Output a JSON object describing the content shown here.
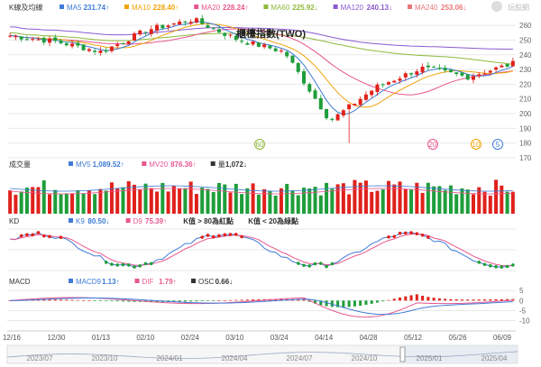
{
  "watermark": "玩股網",
  "colors": {
    "up": "#e0211b",
    "down": "#1e9e3a",
    "ma5": "#3e7bd6",
    "ma10": "#f0a30a",
    "ma20": "#e8568f",
    "ma60": "#8fb83a",
    "ma120": "#8a5ad0",
    "ma240": "#e87878",
    "k": "#3e7bd6",
    "d": "#e8568f",
    "grid": "#e9e9e9"
  },
  "price_panel": {
    "label": "K線及均線",
    "title": "櫃檯指數(TWO)",
    "legend": [
      {
        "name": "MA5",
        "value": "231.74↑",
        "color": "#3e7bd6"
      },
      {
        "name": "MA10",
        "value": "228.40↑",
        "color": "#f0a30a"
      },
      {
        "name": "MA20",
        "value": "228.24↑",
        "color": "#e8568f"
      },
      {
        "name": "MA60",
        "value": "225.92↓",
        "color": "#8fb83a"
      },
      {
        "name": "MA120",
        "value": "240.13↓",
        "color": "#8a5ad0"
      },
      {
        "name": "MA240",
        "value": "253.06↓",
        "color": "#e87878"
      }
    ],
    "y_ticks": [
      "260",
      "250",
      "240",
      "230",
      "220",
      "210",
      "200",
      "190",
      "180",
      "170"
    ],
    "bubbles": [
      {
        "text": "60",
        "color": "#8fb83a"
      },
      {
        "text": "20",
        "color": "#e8568f"
      },
      {
        "text": "10",
        "color": "#f0a30a"
      },
      {
        "text": "5",
        "color": "#3e7bd6"
      }
    ]
  },
  "volume_panel": {
    "label": "成交量",
    "legend": [
      {
        "name": "MV5",
        "value": "1,089.52↑",
        "color": "#3e7bd6"
      },
      {
        "name": "MV20",
        "value": "876.36↑",
        "color": "#e8568f"
      },
      {
        "name": "量",
        "value": "1,072↓",
        "color": "#333333"
      }
    ]
  },
  "kd_panel": {
    "label": "KD",
    "legend": [
      {
        "name": "K9",
        "value": "80.50↓",
        "color": "#3e7bd6"
      },
      {
        "name": "D9",
        "value": "75.39↑",
        "color": "#e8568f"
      },
      {
        "name": "K值 > 80為紅點",
        "value": "",
        "color": "#333333"
      },
      {
        "name": "K值 < 20為綠點",
        "value": "",
        "color": "#333333"
      }
    ]
  },
  "macd_panel": {
    "label": "MACD",
    "legend": [
      {
        "name": "MACD9",
        "value": "1.13↑",
        "color": "#3e7bd6"
      },
      {
        "name": "DIF",
        "value": "1.79↑",
        "color": "#e8568f"
      },
      {
        "name": "OSC",
        "value": "0.66↓",
        "color": "#333333"
      }
    ],
    "y_ticks": [
      "5",
      "0",
      "-5",
      "-10"
    ]
  },
  "x_axis": {
    "dates": [
      "12/16",
      "12/30",
      "01/13",
      "02/10",
      "02/24",
      "03/10",
      "03/24",
      "04/14",
      "04/28",
      "05/12",
      "05/26",
      "06/09"
    ]
  },
  "navigator": {
    "labels": [
      "2023/07",
      "2023/10",
      "2024/01",
      "2024/04",
      "2024/07",
      "2024/10",
      "2025/01",
      "2025/04"
    ]
  },
  "chart_data": {
    "type": "line",
    "title": "櫃檯指數(TWO)",
    "ylim": [
      170,
      265
    ],
    "x": [
      "12/16",
      "12/30",
      "01/13",
      "02/10",
      "02/24",
      "03/10",
      "03/24",
      "04/14",
      "04/28",
      "05/12",
      "05/26",
      "06/09"
    ],
    "close_approx": [
      253,
      249,
      242,
      257,
      264,
      250,
      242,
      195,
      218,
      231,
      225,
      234
    ],
    "series": [
      {
        "name": "MA5",
        "values": [
          252,
          250,
          243,
          255,
          263,
          251,
          244,
          200,
          215,
          229,
          226,
          232
        ]
      },
      {
        "name": "MA10",
        "values": [
          251,
          250,
          245,
          252,
          261,
          252,
          246,
          215,
          210,
          226,
          228,
          229
        ]
      },
      {
        "name": "MA20",
        "values": [
          250,
          250,
          247,
          249,
          257,
          254,
          248,
          230,
          212,
          221,
          228,
          228
        ]
      },
      {
        "name": "MA60",
        "values": [
          252,
          251,
          250,
          250,
          252,
          253,
          252,
          245,
          238,
          232,
          228,
          226
        ]
      },
      {
        "name": "MA120",
        "values": [
          259,
          258,
          257,
          256,
          255,
          254,
          253,
          251,
          248,
          245,
          242,
          240
        ]
      }
    ]
  }
}
